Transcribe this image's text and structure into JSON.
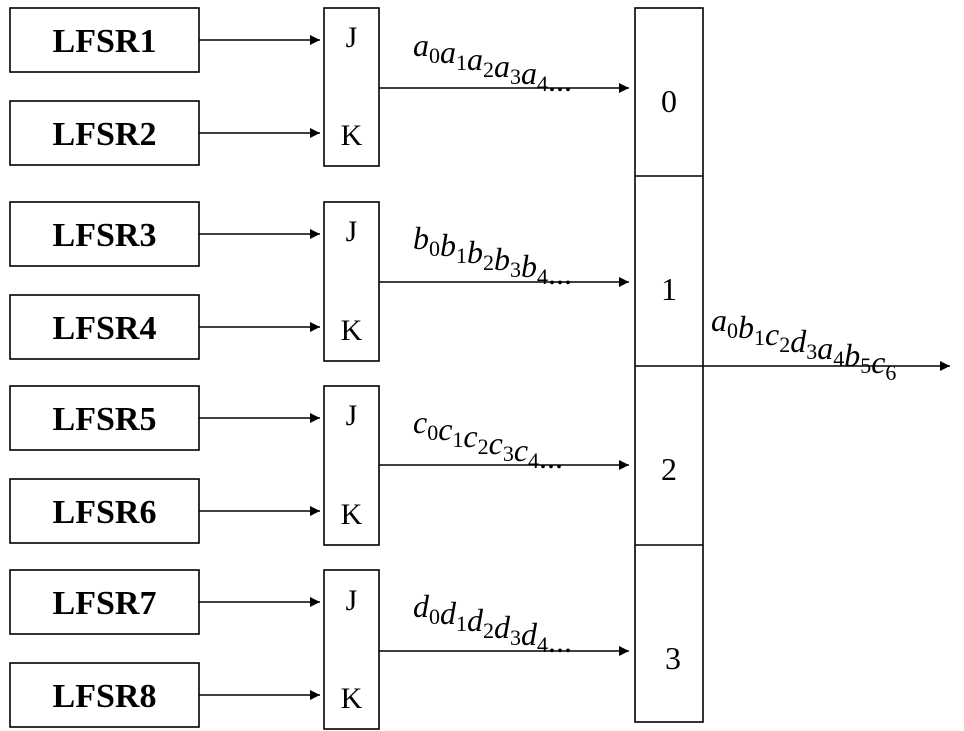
{
  "lfsrs": [
    {
      "label": "LFSR1"
    },
    {
      "label": "LFSR2"
    },
    {
      "label": "LFSR3"
    },
    {
      "label": "LFSR4"
    },
    {
      "label": "LFSR5"
    },
    {
      "label": "LFSR6"
    },
    {
      "label": "LFSR7"
    },
    {
      "label": "LFSR8"
    }
  ],
  "jk_flipflops": [
    {
      "j": "J",
      "k": "K"
    },
    {
      "j": "J",
      "k": "K"
    },
    {
      "j": "J",
      "k": "K"
    },
    {
      "j": "J",
      "k": "K"
    }
  ],
  "sequences": [
    {
      "terms": [
        [
          "a",
          "0"
        ],
        [
          "a",
          "1"
        ],
        [
          "a",
          "2"
        ],
        [
          "a",
          "3"
        ],
        [
          "a",
          "4"
        ]
      ],
      "tail": "..."
    },
    {
      "terms": [
        [
          "b",
          "0"
        ],
        [
          "b",
          "1"
        ],
        [
          "b",
          "2"
        ],
        [
          "b",
          "3"
        ],
        [
          "b",
          "4"
        ]
      ],
      "tail": "..."
    },
    {
      "terms": [
        [
          "c",
          "0"
        ],
        [
          "c",
          "1"
        ],
        [
          "c",
          "2"
        ],
        [
          "c",
          "3"
        ],
        [
          "c",
          "4"
        ]
      ],
      "tail": "..."
    },
    {
      "terms": [
        [
          "d",
          "0"
        ],
        [
          "d",
          "1"
        ],
        [
          "d",
          "2"
        ],
        [
          "d",
          "3"
        ],
        [
          "d",
          "4"
        ]
      ],
      "tail": "..."
    }
  ],
  "multiplexer": {
    "slots": [
      "0",
      "1",
      "2",
      "3"
    ]
  },
  "output": {
    "terms": [
      [
        "a",
        "0"
      ],
      [
        "b",
        "1"
      ],
      [
        "c",
        "2"
      ],
      [
        "d",
        "3"
      ],
      [
        "a",
        "4"
      ],
      [
        "b",
        "5"
      ],
      [
        "c",
        "6"
      ]
    ]
  }
}
